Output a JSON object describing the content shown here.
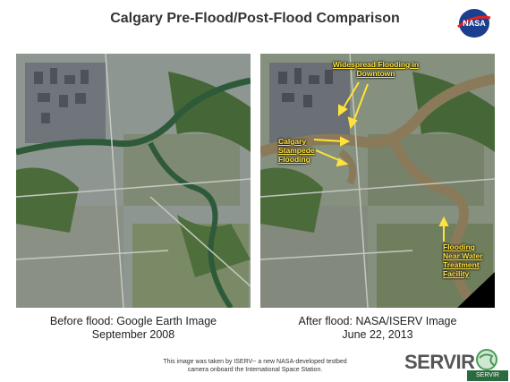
{
  "title": "Calgary Pre-Flood/Post-Flood Comparison",
  "logo": {
    "text": "NASA",
    "icon": "nasa-logo"
  },
  "left_panel": {
    "caption_line1": "Before flood: Google Earth Image",
    "caption_line2": "September 2008"
  },
  "right_panel": {
    "caption_line1": "After flood: NASA/ISERV Image",
    "caption_line2": "June 22, 2013",
    "annotations": [
      {
        "line1": "Widespread Flooding in",
        "line2": "Downtown"
      },
      {
        "line1": "Calgary",
        "line2": "Stampede",
        "line3": "Flooding"
      },
      {
        "line1": "Flooding",
        "line2": "Near Water",
        "line3": "Treatment",
        "line4": "Facility"
      }
    ]
  },
  "footnote": {
    "line1": "This image was taken by ISERV-- a new NASA-developed testbed",
    "line2": "camera onboard the International Space Station."
  },
  "servir": {
    "text": "SERVIR",
    "icon": "globe-icon"
  },
  "corner_tag": "SERVIR",
  "colors": {
    "annotation": "#ffe23a",
    "land": "#7c8a78",
    "vegetation": "#3d5e2e",
    "river_before": "#2e5a3a",
    "river_after": "#8a7a5a"
  }
}
